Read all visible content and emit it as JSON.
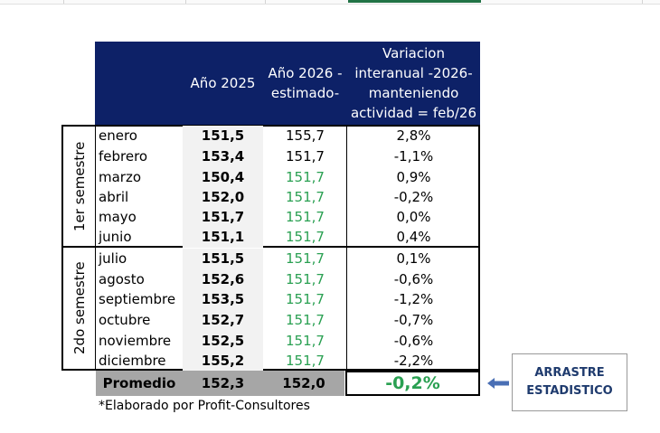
{
  "table": {
    "headers": {
      "year_2025": "Año 2025",
      "year_2026_line1": "Año 2026 -",
      "year_2026_line2": "estimado-",
      "variation_line1": "Variacion",
      "variation_line2": "interanual -2026-",
      "variation_line3": "manteniendo",
      "variation_line4": "actividad = feb/26"
    },
    "semesters": [
      "1er semestre",
      "2do semestre"
    ],
    "rows": [
      {
        "month": "enero",
        "v2025": "151,5",
        "v2026": "155,7",
        "var": "2,8%"
      },
      {
        "month": "febrero",
        "v2025": "153,4",
        "v2026": "151,7",
        "var": "-1,1%"
      },
      {
        "month": "marzo",
        "v2025": "150,4",
        "v2026": "151,7",
        "var": "0,9%"
      },
      {
        "month": "abril",
        "v2025": "152,0",
        "v2026": "151,7",
        "var": "-0,2%"
      },
      {
        "month": "mayo",
        "v2025": "151,7",
        "v2026": "151,7",
        "var": "0,0%"
      },
      {
        "month": "junio",
        "v2025": "151,1",
        "v2026": "151,7",
        "var": "0,4%"
      },
      {
        "month": "julio",
        "v2025": "151,5",
        "v2026": "151,7",
        "var": "0,1%"
      },
      {
        "month": "agosto",
        "v2025": "152,6",
        "v2026": "151,7",
        "var": "-0,6%"
      },
      {
        "month": "septiembre",
        "v2025": "153,5",
        "v2026": "151,7",
        "var": "-1,2%"
      },
      {
        "month": "octubre",
        "v2025": "152,7",
        "v2026": "151,7",
        "var": "-0,7%"
      },
      {
        "month": "noviembre",
        "v2025": "152,5",
        "v2026": "151,7",
        "var": "-0,6%"
      },
      {
        "month": "diciembre",
        "v2025": "155,2",
        "v2026": "151,7",
        "var": "-2,2%"
      }
    ],
    "average": {
      "label": "Promedio",
      "v2025": "152,3",
      "v2026": "152,0",
      "var": "-0,2%"
    },
    "footnote": "*Elaborado por Profit-Consultores"
  },
  "callout": {
    "line1": "ARRASTRE",
    "line2": "ESTADISTICO"
  },
  "colors": {
    "header_bg": "#0d2167",
    "estimate_green": "#2aa052",
    "average_bg": "#a6a6a6",
    "callout_text": "#1f3b6e",
    "arrow": "#4a6fb5"
  },
  "icons": {
    "pointer": "arrow-left-icon"
  }
}
